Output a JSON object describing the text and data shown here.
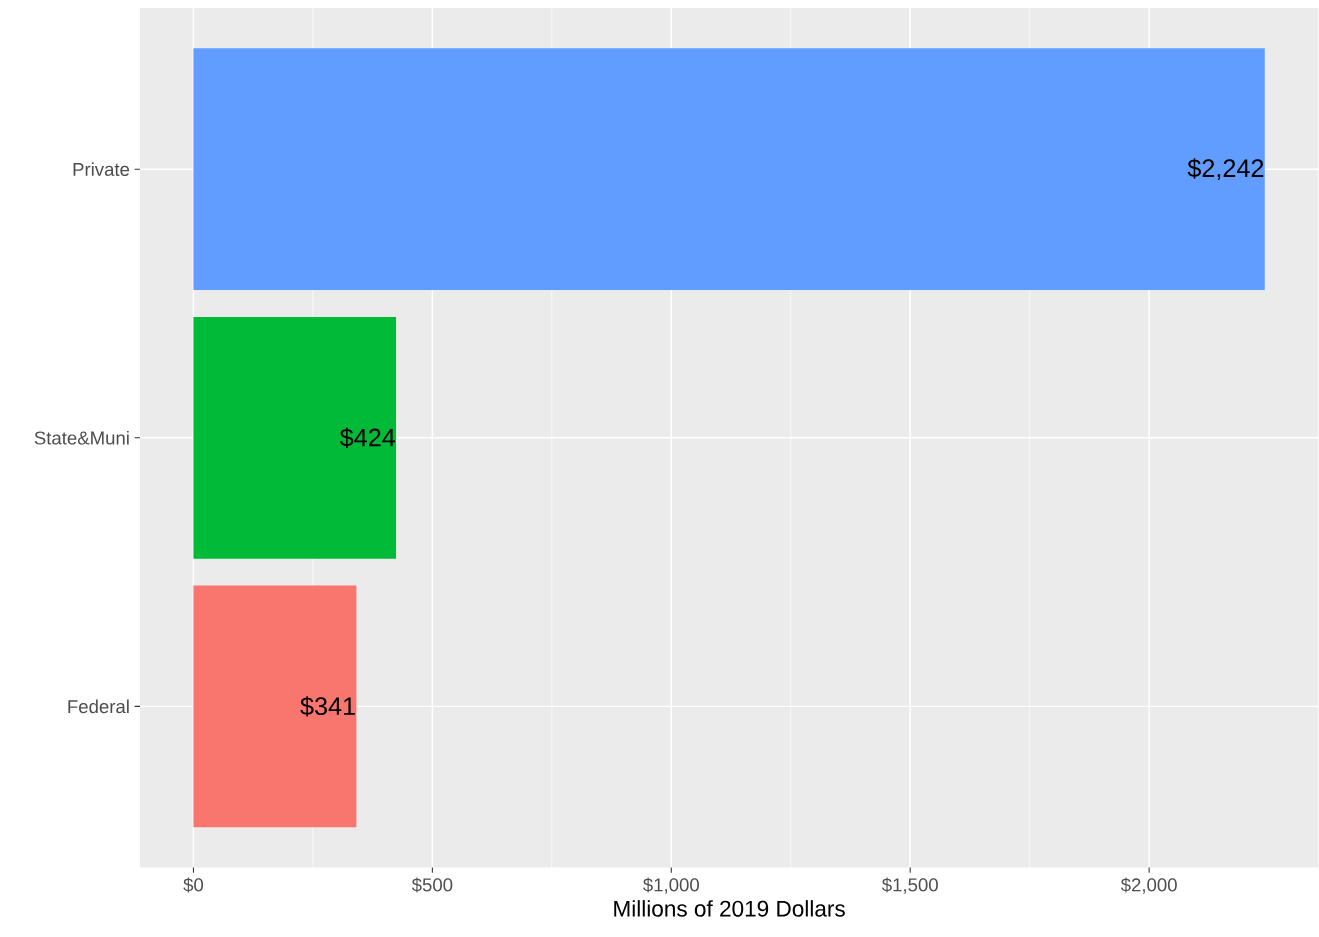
{
  "chart_data": {
    "type": "bar",
    "orientation": "horizontal",
    "xlabel": "Millions of 2019 Dollars",
    "categories": [
      "Private",
      "State&Muni",
      "Federal"
    ],
    "values": [
      2242,
      424,
      341
    ],
    "colors": [
      "#619cff",
      "#00ba38",
      "#f8766d"
    ],
    "value_labels": [
      "$2,242",
      "$424",
      "$341"
    ],
    "xlim": [
      -112,
      2354
    ],
    "xticks": [
      {
        "value": 0,
        "label": "$0"
      },
      {
        "value": 500,
        "label": "$500"
      },
      {
        "value": 1000,
        "label": "$1,000"
      },
      {
        "value": 1500,
        "label": "$1,500"
      },
      {
        "value": 2000,
        "label": "$2,000"
      }
    ],
    "grid": true
  }
}
